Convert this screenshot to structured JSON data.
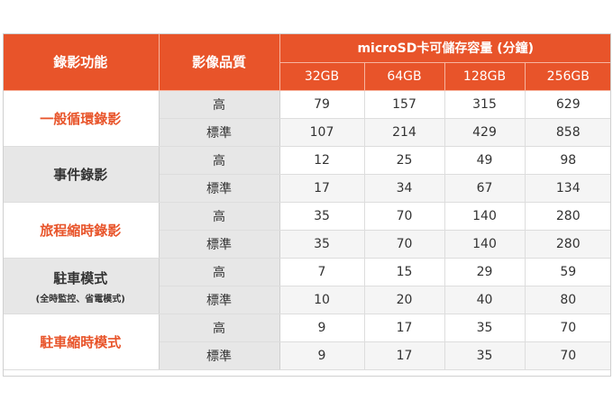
{
  "header": {
    "mode_label": "錄影功能",
    "quality_label": "影像品質",
    "capacity_label": "microSD卡可儲存容量 (分鐘)",
    "sizes": [
      "32GB",
      "64GB",
      "128GB",
      "256GB"
    ]
  },
  "rows": [
    {
      "mode": "一般循環錄影",
      "sub": "",
      "high_label": "高",
      "high": [
        "79",
        "157",
        "315",
        "629"
      ],
      "std_label": "標準",
      "std": [
        "107",
        "214",
        "429",
        "858"
      ]
    },
    {
      "mode": "事件錄影",
      "sub": "",
      "high_label": "高",
      "high": [
        "12",
        "25",
        "49",
        "98"
      ],
      "std_label": "標準",
      "std": [
        "17",
        "34",
        "67",
        "134"
      ]
    },
    {
      "mode": "旅程縮時錄影",
      "sub": "",
      "high_label": "高",
      "high": [
        "35",
        "70",
        "140",
        "280"
      ],
      "std_label": "標準",
      "std": [
        "35",
        "70",
        "140",
        "280"
      ]
    },
    {
      "mode": "駐車模式",
      "sub": "(全時監控、省電模式)",
      "high_label": "高",
      "high": [
        "7",
        "15",
        "29",
        "59"
      ],
      "std_label": "標準",
      "std": [
        "10",
        "20",
        "40",
        "80"
      ]
    },
    {
      "mode": "駐車縮時模式",
      "sub": "",
      "high_label": "高",
      "high": [
        "9",
        "17",
        "35",
        "70"
      ],
      "std_label": "標準",
      "std": [
        "9",
        "17",
        "35",
        "70"
      ]
    }
  ],
  "colors": {
    "accent": "#e8542a",
    "gray": "#e7e7e7"
  }
}
